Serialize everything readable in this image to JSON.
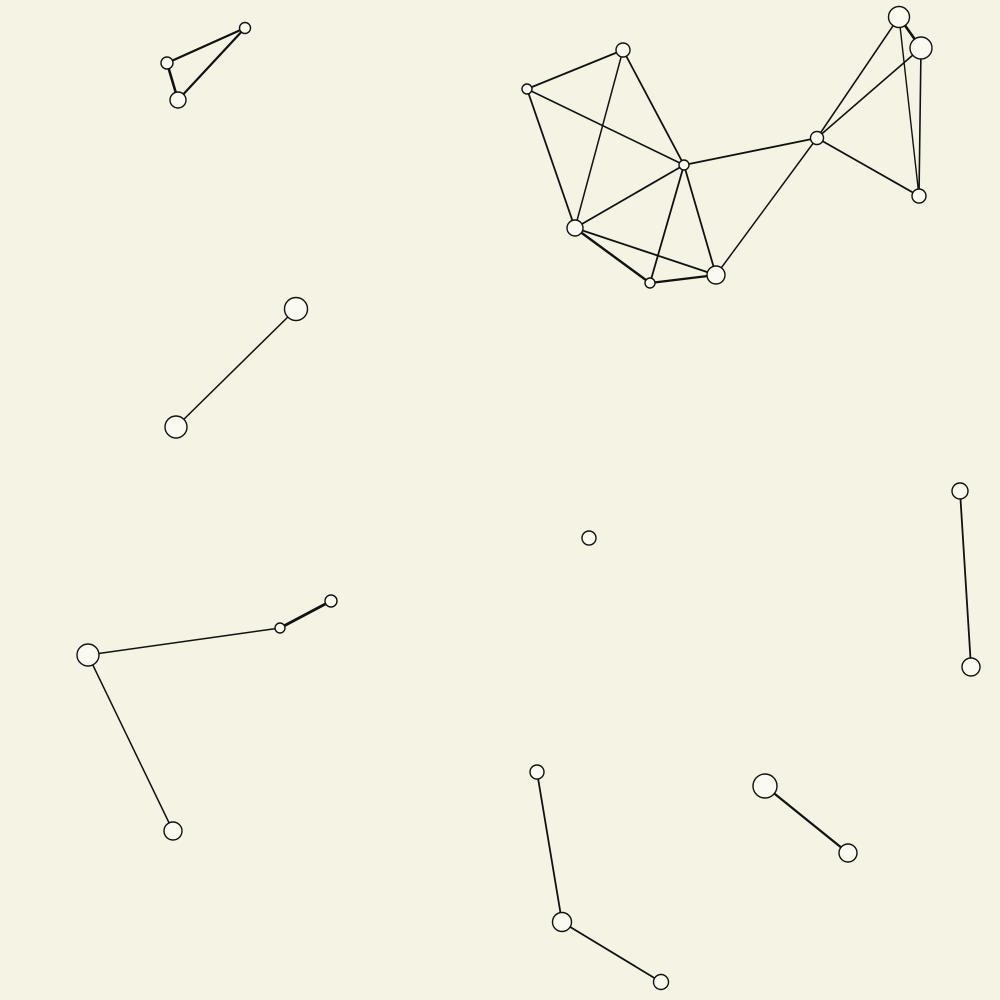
{
  "graph": {
    "background_color": "#f5f3e3",
    "node_fill": "#fbfaf0",
    "stroke_color": "#111111"
  }
}
